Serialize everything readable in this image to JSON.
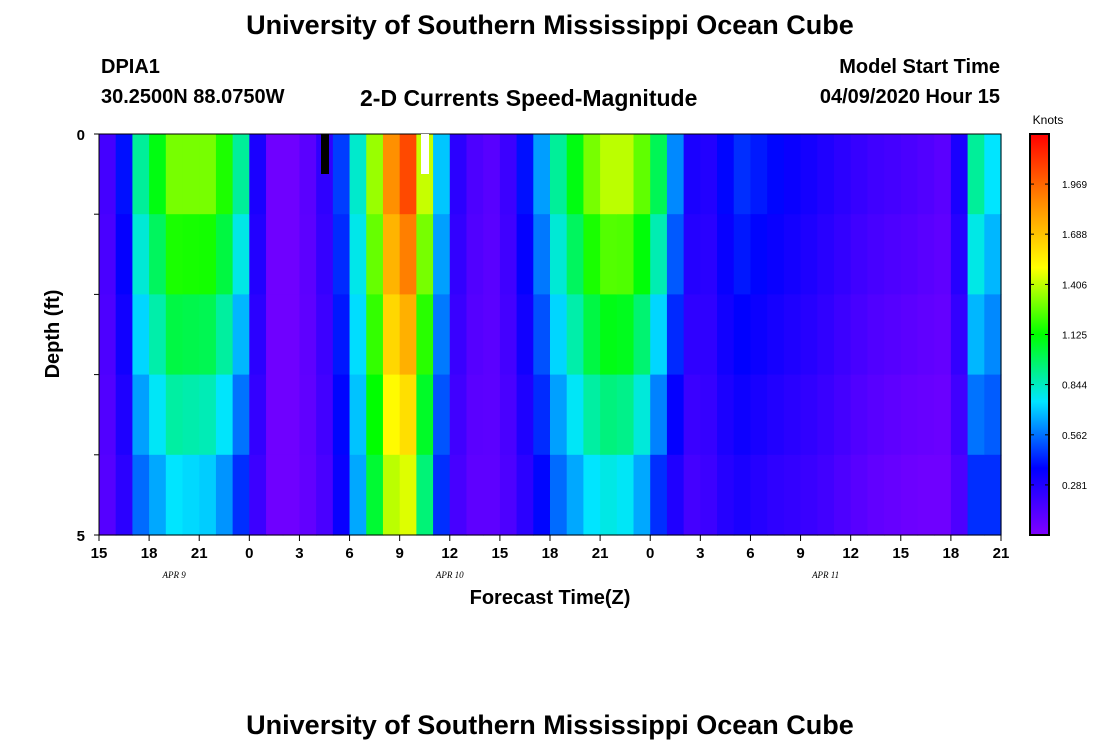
{
  "header": {
    "title_top": "University of Southern Mississippi Ocean Cube",
    "station_id": "DPIA1",
    "coordinates": "30.2500N 88.0750W",
    "plot_title": "2-D Currents Speed-Magnitude",
    "model_label": "Model Start Time",
    "model_time": "04/09/2020 Hour 15"
  },
  "footer": {
    "title_bottom": "University of Southern Mississippi Ocean Cube"
  },
  "chart_data": {
    "type": "heatmap",
    "title": "2-D Currents Speed-Magnitude",
    "xlabel": "Forecast Time(Z)",
    "ylabel": "Depth (ft)",
    "units": "Knots",
    "colormap": "rainbow",
    "colors": [
      "#8000ff",
      "#0000ff",
      "#00e5ff",
      "#00ff00",
      "#ffff00",
      "#ff8800",
      "#ff0000"
    ],
    "x_range_hours": [
      0,
      54
    ],
    "x_ticks": [
      "15",
      "18",
      "21",
      "0",
      "3",
      "6",
      "9",
      "12",
      "15",
      "18",
      "21",
      "0",
      "3",
      "6",
      "9",
      "12",
      "15",
      "18",
      "21"
    ],
    "date_labels": [
      {
        "label": "APR  9",
        "hour": 4.5
      },
      {
        "label": "APR  10",
        "hour": 21
      },
      {
        "label": "APR  11",
        "hour": 43.5
      }
    ],
    "y_tick_labels": [
      "0",
      "5"
    ],
    "y_range": [
      0,
      5
    ],
    "depth_layers": 5,
    "colorbar_ticks": [
      "0.281",
      "0.562",
      "0.844",
      "1.125",
      "1.406",
      "1.688",
      "1.969"
    ],
    "colorbar_range": [
      0,
      2.25
    ],
    "speed_profiles": {
      "hours": [
        0,
        1,
        2,
        2.5,
        4.5,
        7,
        8.5,
        9.5,
        10.5,
        12,
        14,
        16,
        17,
        18,
        18.5,
        20,
        21,
        22.5,
        24,
        26,
        27.5,
        30,
        32,
        33.5,
        35,
        36,
        37,
        38.5,
        40,
        43,
        46,
        49,
        51,
        52,
        52.5,
        53,
        54
      ],
      "surface": [
        0.15,
        0.2,
        0.6,
        0.9,
        1.3,
        1.3,
        0.9,
        0.3,
        0.05,
        0.05,
        0.3,
        1.0,
        1.7,
        2.0,
        2.05,
        1.1,
        0.3,
        0.15,
        0.1,
        0.5,
        0.9,
        1.4,
        1.4,
        1.0,
        0.4,
        0.2,
        0.35,
        0.45,
        0.4,
        0.3,
        0.2,
        0.15,
        0.1,
        0.5,
        0.9,
        0.5,
        1.0
      ],
      "bottom": [
        0.1,
        0.15,
        0.35,
        0.55,
        0.75,
        0.7,
        0.45,
        0.2,
        0.05,
        0.05,
        0.2,
        0.8,
        1.3,
        1.5,
        1.45,
        0.7,
        0.2,
        0.1,
        0.1,
        0.3,
        0.55,
        0.8,
        0.75,
        0.45,
        0.2,
        0.15,
        0.25,
        0.3,
        0.25,
        0.2,
        0.1,
        0.05,
        0.05,
        0.25,
        0.45,
        0.3,
        0.6
      ]
    }
  }
}
